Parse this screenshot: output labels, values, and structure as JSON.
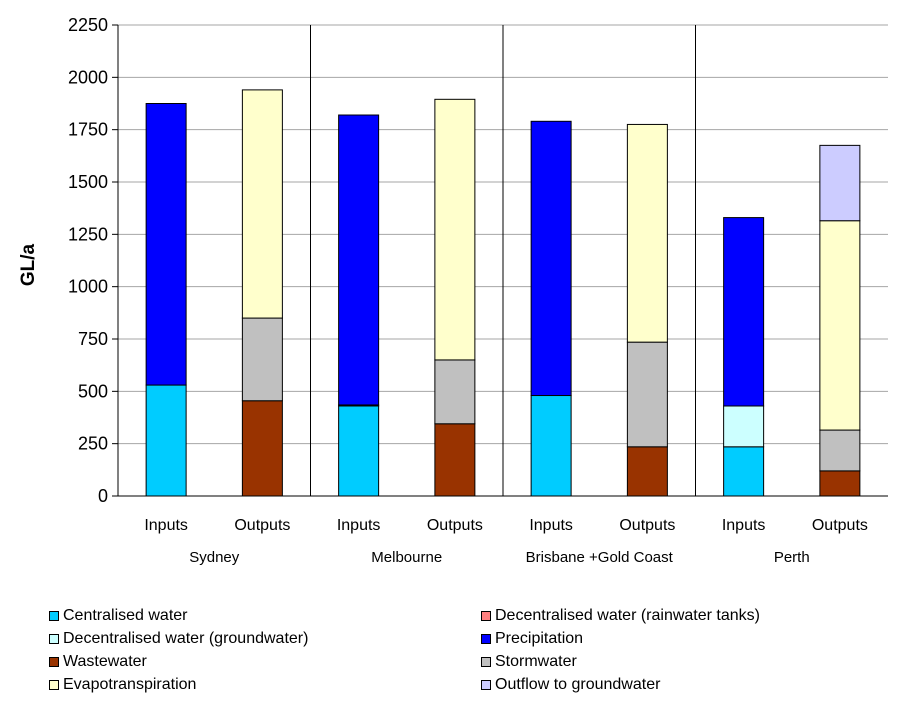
{
  "chart_data": {
    "type": "bar",
    "stacked": true,
    "ylabel": "GL/a",
    "ylim": [
      0,
      2250
    ],
    "yticks": [
      0,
      250,
      500,
      750,
      1000,
      1250,
      1500,
      1750,
      2000,
      2250
    ],
    "grid": true,
    "legend_position": "bottom",
    "groups": [
      "Sydney",
      "Melbourne",
      "Brisbane +Gold Coast",
      "Perth"
    ],
    "categories": [
      "Inputs",
      "Outputs",
      "Inputs",
      "Outputs",
      "Inputs",
      "Outputs",
      "Inputs",
      "Outputs"
    ],
    "series": [
      {
        "name": "Centralised water",
        "color": "#00ccff",
        "values": [
          530,
          0,
          430,
          0,
          480,
          0,
          235,
          0
        ]
      },
      {
        "name": "Decentralised water (rainwater tanks)",
        "color": "#ff8080",
        "values": [
          0,
          0,
          5,
          0,
          0,
          0,
          0,
          0
        ]
      },
      {
        "name": "Decentralised water (groundwater)",
        "color": "#ccffff",
        "values": [
          0,
          0,
          0,
          0,
          0,
          0,
          195,
          0
        ]
      },
      {
        "name": "Precipitation",
        "color": "#0000ff",
        "values": [
          1345,
          0,
          1385,
          0,
          1310,
          0,
          900,
          0
        ]
      },
      {
        "name": "Wastewater",
        "color": "#993300",
        "values": [
          0,
          455,
          0,
          345,
          0,
          235,
          0,
          120
        ]
      },
      {
        "name": "Stormwater",
        "color": "#c0c0c0",
        "values": [
          0,
          395,
          0,
          305,
          0,
          500,
          0,
          195
        ]
      },
      {
        "name": "Evapotranspiration",
        "color": "#ffffcc",
        "values": [
          0,
          1090,
          0,
          1245,
          0,
          1040,
          0,
          1000
        ]
      },
      {
        "name": "Outflow to groundwater",
        "color": "#ccccff",
        "values": [
          0,
          0,
          0,
          0,
          0,
          0,
          0,
          360
        ]
      }
    ]
  }
}
